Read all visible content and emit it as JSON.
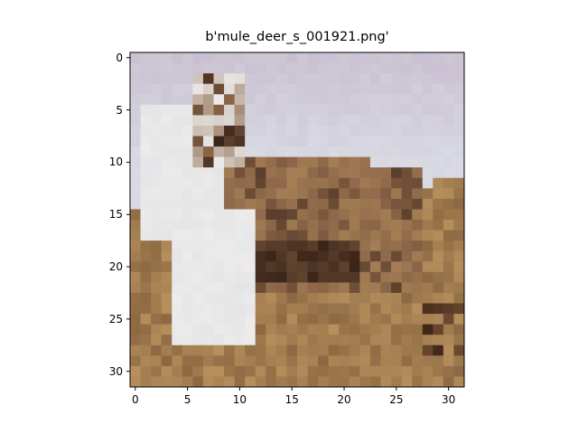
{
  "title": "b'mule_deer_s_001921.png'",
  "image": {
    "subject": "mule deer standing in dry grass field under pale sky (32x32 pixelated photo)",
    "pixel_grid": [
      32,
      32
    ],
    "palette": {
      "sky_lavender": "#c9bfd0",
      "sky_pale": "#d8d9e2",
      "deer_white": "#ecebea",
      "deer_brown": "#8a6548",
      "deer_dark": "#3a2418",
      "grass_tan": "#b68f5c",
      "grass_dark": "#6b4a2e"
    }
  },
  "x_axis": {
    "ticks": [
      0,
      5,
      10,
      15,
      20,
      25,
      30
    ],
    "range": [
      -0.5,
      31.5
    ]
  },
  "y_axis": {
    "ticks": [
      0,
      5,
      10,
      15,
      20,
      25,
      30
    ],
    "range": [
      -0.5,
      31.5
    ]
  }
}
